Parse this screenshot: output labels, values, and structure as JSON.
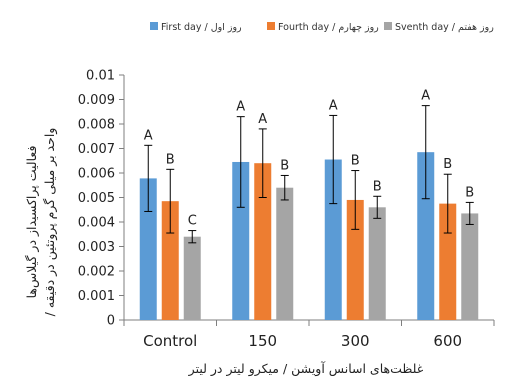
{
  "chart_data": {
    "type": "bar",
    "categories": [
      "Control",
      "150",
      "300",
      "600"
    ],
    "series": [
      {
        "name": "First day / روز اول",
        "color": "#5b9bd5",
        "values": [
          0.00578,
          0.00645,
          0.00655,
          0.00685
        ],
        "errors": [
          0.00135,
          0.00185,
          0.0018,
          0.0019
        ],
        "labels": [
          "A",
          "A",
          "A",
          "A"
        ]
      },
      {
        "name": "Fourth  day / روز چهارم",
        "color": "#ed7d31",
        "values": [
          0.00485,
          0.0064,
          0.0049,
          0.00475
        ],
        "errors": [
          0.0013,
          0.0014,
          0.0012,
          0.0012
        ],
        "labels": [
          "B",
          "A",
          "B",
          "B"
        ]
      },
      {
        "name": "Sventh day / روز هفتم",
        "color": "#a5a5a5",
        "values": [
          0.0034,
          0.0054,
          0.0046,
          0.00435
        ],
        "errors": [
          0.00025,
          0.0005,
          0.00045,
          0.00045
        ],
        "labels": [
          "C",
          "B",
          "B",
          "B"
        ]
      }
    ],
    "yticks": [
      "0",
      "0.001",
      "0.002",
      "0.003",
      "0.004",
      "0.005",
      "0.006",
      "0.007",
      "0.008",
      "0.009",
      "0.01"
    ],
    "ylim": [
      0,
      0.01
    ],
    "xlabel": "غلظت‌های اسانس آویشن / میکرو لیتر در لیتر",
    "ylabel_line1": "فعالیت پراکسیداز در گیلاس‌ها",
    "ylabel_line2": "/ واحد بر میلی گرم پروتئین در دقیقه",
    "legend_position": "top",
    "grid": false
  }
}
